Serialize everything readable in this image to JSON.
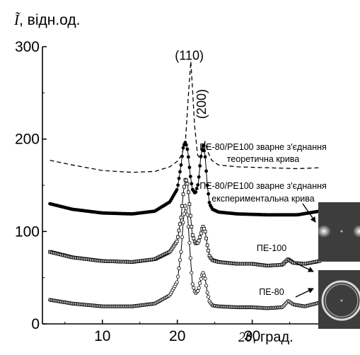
{
  "chart_data": {
    "type": "line",
    "xlabel_symbol": "2θ",
    "xlabel_unit": ", град.",
    "ylabel_symbol": "Ĩ",
    "ylabel_unit": ", відн.од.",
    "xlim": [
      2,
      39
    ],
    "ylim": [
      0,
      300
    ],
    "xticks": [
      10,
      20,
      30
    ],
    "yticks": [
      0,
      100,
      200,
      300
    ],
    "grid": false,
    "annotations": [
      {
        "text": "(110)",
        "x": 21.6,
        "y": 286,
        "rotate": 0
      },
      {
        "text": "(200)",
        "x": 23.8,
        "y": 238,
        "rotate": -90
      }
    ],
    "series": [
      {
        "name": "ПЕ-80/PE100 зварне з'єднання теоретична крива",
        "style": "dashed",
        "x": [
          3,
          6,
          10,
          14,
          17,
          19,
          20,
          20.6,
          21.1,
          21.5,
          21.8,
          22.0,
          22.3,
          22.7,
          23.1,
          23.4,
          23.7,
          24.1,
          24.6,
          25.5,
          28,
          32,
          36,
          39
        ],
        "values": [
          177,
          172,
          166,
          164,
          165,
          170,
          176,
          183,
          200,
          250,
          284,
          258,
          215,
          183,
          178,
          188,
          197,
          186,
          177,
          172,
          170,
          169,
          168,
          169
        ]
      },
      {
        "name": "ПЕ-80/PE100 зварне з'єднання експериментальна крива",
        "style": "filled-circles",
        "x": [
          3,
          6,
          10,
          14,
          17,
          19,
          20,
          20.5,
          20.8,
          21.1,
          21.4,
          21.7,
          22.0,
          22.4,
          22.8,
          23.1,
          23.4,
          23.7,
          24.0,
          24.3,
          24.7,
          25.5,
          28,
          32,
          36,
          39
        ],
        "values": [
          130,
          124,
          120,
          119,
          122,
          132,
          146,
          172,
          192,
          197,
          187,
          163,
          146,
          141,
          152,
          178,
          194,
          183,
          150,
          130,
          124,
          121,
          119,
          118,
          118,
          122
        ]
      },
      {
        "name": "ПЕ-100",
        "style": "open-squares",
        "x": [
          3,
          6,
          10,
          14,
          17,
          19,
          20,
          20.5,
          20.8,
          21.1,
          21.4,
          21.7,
          22.0,
          22.4,
          22.8,
          23.1,
          23.4,
          23.7,
          24.0,
          24.3,
          24.7,
          25.5,
          28,
          30,
          32,
          34,
          34.8,
          35.5,
          37,
          39
        ],
        "values": [
          78,
          72,
          68,
          67,
          70,
          78,
          90,
          115,
          142,
          158,
          150,
          122,
          97,
          87,
          88,
          96,
          106,
          101,
          85,
          73,
          69,
          67,
          65,
          65,
          63,
          64,
          70,
          66,
          65,
          68
        ]
      },
      {
        "name": "ПЕ-80",
        "style": "open-circles",
        "x": [
          3,
          6,
          10,
          14,
          17,
          19,
          20,
          20.5,
          20.8,
          21.1,
          21.4,
          21.7,
          22.0,
          22.4,
          22.8,
          23.1,
          23.4,
          23.7,
          24.0,
          24.3,
          24.7,
          25.5,
          28,
          30,
          32,
          34,
          34.8,
          35.5,
          37,
          39
        ],
        "values": [
          26,
          22,
          19,
          19,
          22,
          31,
          46,
          78,
          112,
          130,
          115,
          78,
          44,
          33,
          36,
          47,
          56,
          50,
          34,
          24,
          20,
          19,
          18,
          18,
          17,
          18,
          25,
          21,
          19,
          23
        ]
      }
    ]
  },
  "labels": {
    "theoretical_line1": "ПЕ-80/PE100 зварне з'єднання",
    "theoretical_line2": "теоретична крива",
    "experimental_line1": "ПЕ-80/PE100 зварне з'єднання",
    "experimental_line2": "експериментальна крива",
    "pe100": "ПЕ-100",
    "pe80": "ПЕ-80"
  }
}
